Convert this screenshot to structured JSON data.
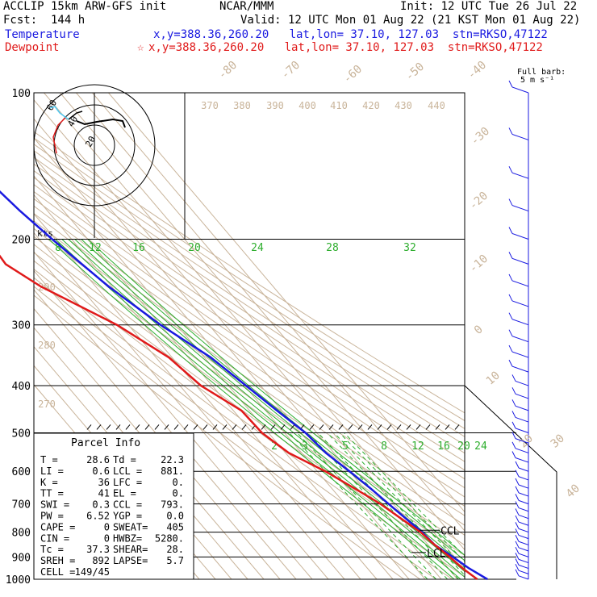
{
  "header": {
    "model": "ACCLIP 15km ARW-GFS init",
    "center": "NCAR/MMM",
    "init": "Init: 12 UTC Tue 26 Jul 22",
    "fcst": "Fcst:  144 h",
    "valid": "Valid: 12 UTC Mon 01 Aug 22 (21 KST Mon 01 Aug 22)",
    "temperature_label": "Temperature",
    "dewpoint_label": "Dewpoint",
    "temp_loc": "x,y=388.36,260.20   lat,lon= 37.10, 127.03  stn=RKSO,47122",
    "dew_star": "☆",
    "dew_loc": "x,y=388.36,260.20   lat,lon= 37.10, 127.03  stn=RKSO,47122",
    "colors": {
      "temperature": "#1a1ae0",
      "dewpoint": "#e01a1a",
      "isotherm": "#c9b49a",
      "mixing_ratio": "#2eae2e"
    }
  },
  "barb_legend": {
    "line1": "Full barb:",
    "line2": "5 m s⁻¹"
  },
  "parcel_info": {
    "title": "Parcel Info",
    "rows": [
      [
        "T   =",
        "28.6",
        "Td =",
        "22.3"
      ],
      [
        "LI  =",
        "0.6",
        "LCL =",
        "881."
      ],
      [
        "K   =",
        "36",
        "LFC =",
        "0."
      ],
      [
        "TT  =",
        "41",
        "EL  =",
        "0."
      ],
      [
        "SWI =",
        "0.3",
        "CCL =",
        "793."
      ],
      [
        "PW  =",
        "6.52",
        "YGP =",
        "0.0"
      ],
      [
        "CAPE =",
        "0",
        "SWEAT=",
        "405"
      ],
      [
        "CIN  =",
        "0",
        "HWBZ=",
        "5280."
      ],
      [
        "Tc  =",
        "37.3",
        "SHEAR=",
        "28."
      ],
      [
        "SREH =",
        "892",
        "LAPSE=",
        "5.7"
      ],
      [
        "CELL =",
        "149/45",
        "",
        ""
      ]
    ]
  },
  "hodograph": {
    "axis_label": "kts",
    "ring_labels": [
      "20",
      "40",
      "60"
    ]
  },
  "level_markers": {
    "ccl": "CCL",
    "lcl": "LCL"
  },
  "chart_data": {
    "type": "line",
    "title": "",
    "y_axis": {
      "scale": "log-pressure",
      "ticks": [
        100,
        200,
        300,
        400,
        500,
        600,
        700,
        800,
        900,
        1000
      ],
      "unit": "hPa"
    },
    "isotherm_labels": [
      "-80",
      "-70",
      "-60",
      "-50",
      "-40",
      "-30",
      "-20",
      "-10",
      "0",
      "10",
      "20",
      "30",
      "40"
    ],
    "potential_temperature_labels": [
      "370",
      "380",
      "390",
      "400",
      "410",
      "420",
      "430",
      "440",
      "290",
      "280",
      "270"
    ],
    "mixing_ratio_labels_upper": [
      "8",
      "12",
      "16",
      "20",
      "24",
      "28",
      "32"
    ],
    "mixing_ratio_labels_lower": [
      "2",
      "3",
      "5",
      "8",
      "12",
      "16",
      "20",
      "24"
    ],
    "series": [
      {
        "name": "Temperature",
        "points": [
          [
            100,
            -62
          ],
          [
            125,
            -72
          ],
          [
            150,
            -71
          ],
          [
            175,
            -67
          ],
          [
            200,
            -62
          ],
          [
            250,
            -52
          ],
          [
            300,
            -40
          ],
          [
            350,
            -26
          ],
          [
            400,
            -19
          ],
          [
            450,
            -13
          ],
          [
            500,
            -7
          ],
          [
            550,
            -5
          ],
          [
            600,
            0
          ],
          [
            650,
            4
          ],
          [
            700,
            7
          ],
          [
            750,
            10
          ],
          [
            800,
            13
          ],
          [
            850,
            14
          ],
          [
            900,
            19
          ],
          [
            950,
            23
          ],
          [
            1000,
            28.6
          ]
        ]
      },
      {
        "name": "Dewpoint",
        "points": [
          [
            100,
            -92
          ],
          [
            125,
            -98
          ],
          [
            150,
            -97
          ],
          [
            175,
            -100
          ],
          [
            190,
            -105
          ],
          [
            200,
            -102
          ],
          [
            225,
            -104
          ],
          [
            250,
            -94
          ],
          [
            300,
            -67
          ],
          [
            350,
            -52
          ],
          [
            400,
            -47
          ],
          [
            450,
            -35
          ],
          [
            500,
            -34
          ],
          [
            550,
            -28
          ],
          [
            600,
            -15
          ],
          [
            650,
            -6
          ],
          [
            700,
            2
          ],
          [
            750,
            7
          ],
          [
            800,
            12
          ],
          [
            850,
            14
          ],
          [
            900,
            17
          ],
          [
            950,
            19
          ],
          [
            1000,
            22.3
          ]
        ]
      }
    ],
    "hodograph_trace": [
      [
        -65,
        52
      ],
      [
        -58,
        68
      ],
      [
        -45,
        58
      ],
      [
        -30,
        52
      ],
      [
        -10,
        50
      ],
      [
        5,
        48
      ],
      [
        15,
        52
      ]
    ]
  }
}
